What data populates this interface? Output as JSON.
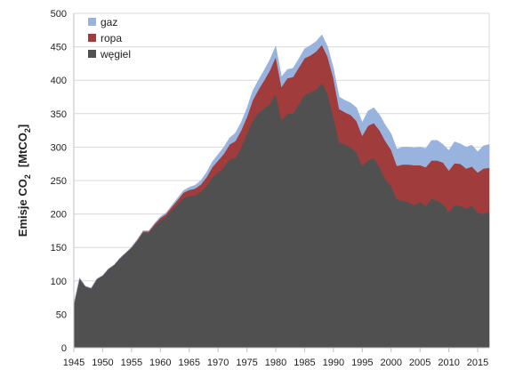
{
  "chart_data": {
    "type": "area",
    "stacked": true,
    "title": "",
    "xlabel": "",
    "ylabel": {
      "prefix": "Emisje CO",
      "prefix_sub": "2",
      "unit_open": "[MtCO",
      "unit_sub": "2",
      "unit_close": "]"
    },
    "xlim": [
      1945,
      2017
    ],
    "ylim": [
      0,
      500
    ],
    "xticks": [
      1945,
      1950,
      1955,
      1960,
      1965,
      1970,
      1975,
      1980,
      1985,
      1990,
      1995,
      2000,
      2005,
      2010,
      2015
    ],
    "yticks": [
      0,
      50,
      100,
      150,
      200,
      250,
      300,
      350,
      400,
      450,
      500
    ],
    "grid": "horizontal",
    "legend_position": "top-left",
    "x": [
      1945,
      1946,
      1947,
      1948,
      1949,
      1950,
      1951,
      1952,
      1953,
      1954,
      1955,
      1956,
      1957,
      1958,
      1959,
      1960,
      1961,
      1962,
      1963,
      1964,
      1965,
      1966,
      1967,
      1968,
      1969,
      1970,
      1971,
      1972,
      1973,
      1974,
      1975,
      1976,
      1977,
      1978,
      1979,
      1980,
      1981,
      1982,
      1983,
      1984,
      1985,
      1986,
      1987,
      1988,
      1989,
      1990,
      1991,
      1992,
      1993,
      1994,
      1995,
      1996,
      1997,
      1998,
      1999,
      2000,
      2001,
      2002,
      2003,
      2004,
      2005,
      2006,
      2007,
      2008,
      2009,
      2010,
      2011,
      2012,
      2013,
      2014,
      2015,
      2016,
      2017
    ],
    "series": [
      {
        "name": "węgiel",
        "color": "#505050",
        "values": [
          65,
          104,
          92,
          89,
          103,
          108,
          118,
          124,
          134,
          142,
          149,
          160,
          172,
          172,
          182,
          190,
          196,
          206,
          215,
          224,
          227,
          228,
          233,
          242,
          255,
          262,
          270,
          282,
          284,
          300,
          320,
          340,
          351,
          358,
          365,
          380,
          340,
          350,
          350,
          364,
          378,
          382,
          386,
          396,
          380,
          345,
          307,
          304,
          300,
          292,
          272,
          280,
          284,
          270,
          252,
          242,
          222,
          220,
          218,
          213,
          218,
          212,
          223,
          220,
          215,
          203,
          213,
          212,
          208,
          213,
          202,
          200,
          203
        ],
        "fill_alpha": 1
      },
      {
        "name": "ropa",
        "color": "#a03c3c",
        "values": [
          0,
          0,
          0,
          0,
          0,
          0,
          0,
          0,
          0,
          0,
          1,
          1,
          2,
          2,
          3,
          4,
          4,
          5,
          6,
          8,
          9,
          10,
          11,
          13,
          15,
          18,
          20,
          22,
          25,
          25,
          25,
          30,
          35,
          42,
          50,
          55,
          50,
          53,
          55,
          55,
          55,
          55,
          57,
          57,
          55,
          58,
          50,
          48,
          48,
          47,
          45,
          52,
          52,
          55,
          57,
          54,
          50,
          54,
          56,
          60,
          55,
          58,
          57,
          60,
          62,
          62,
          63,
          63,
          60,
          58,
          60,
          68,
          66
        ],
        "fill_alpha": 1
      },
      {
        "name": "gaz",
        "color": "#98b4de",
        "values": [
          0,
          0,
          0,
          0,
          0,
          0,
          0,
          0,
          0,
          0,
          1,
          1,
          1,
          1,
          1,
          2,
          2,
          2,
          3,
          3,
          4,
          5,
          6,
          7,
          8,
          9,
          10,
          10,
          12,
          12,
          13,
          14,
          14,
          15,
          16,
          16,
          15,
          13,
          13,
          13,
          14,
          15,
          15,
          15,
          15,
          15,
          18,
          18,
          18,
          20,
          20,
          22,
          23,
          23,
          24,
          24,
          25,
          26,
          26,
          26,
          27,
          28,
          30,
          30,
          27,
          30,
          32,
          30,
          32,
          32,
          31,
          34,
          35
        ],
        "fill_alpha": 1
      }
    ]
  }
}
